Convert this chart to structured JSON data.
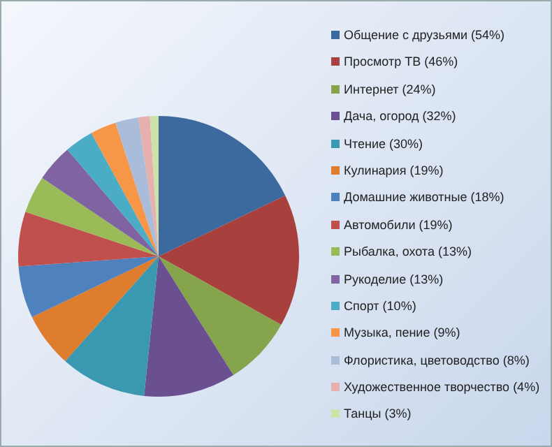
{
  "chart_data": {
    "type": "pie",
    "legend": "right",
    "categories": [
      "Общение с друзьями (54%)",
      "Просмотр ТВ (46%)",
      "Интернет (24%)",
      "Дача, огород (32%)",
      "Чтение (30%)",
      "Кулинария (19%)",
      "Домашние животные (18%)",
      "Автомобили (19%)",
      "Рыбалка, охота (13%)",
      "Рукоделие (13%)",
      "Спорт (10%)",
      "Музыка, пение (9%)",
      "Флористика, цветоводство (8%)",
      "Художественное творчество (4%)",
      "Танцы (3%)"
    ],
    "values": [
      54,
      46,
      24,
      32,
      30,
      19,
      18,
      19,
      13,
      13,
      10,
      9,
      8,
      4,
      3
    ],
    "colors": [
      "#3d6a9e",
      "#a8403d",
      "#86a44c",
      "#6a5090",
      "#3a98b0",
      "#de7d2e",
      "#4f81bd",
      "#c0504d",
      "#9bbb59",
      "#8064a2",
      "#4bacc6",
      "#f79646",
      "#a9bcd9",
      "#e5b0ae",
      "#cfe0a8"
    ]
  }
}
